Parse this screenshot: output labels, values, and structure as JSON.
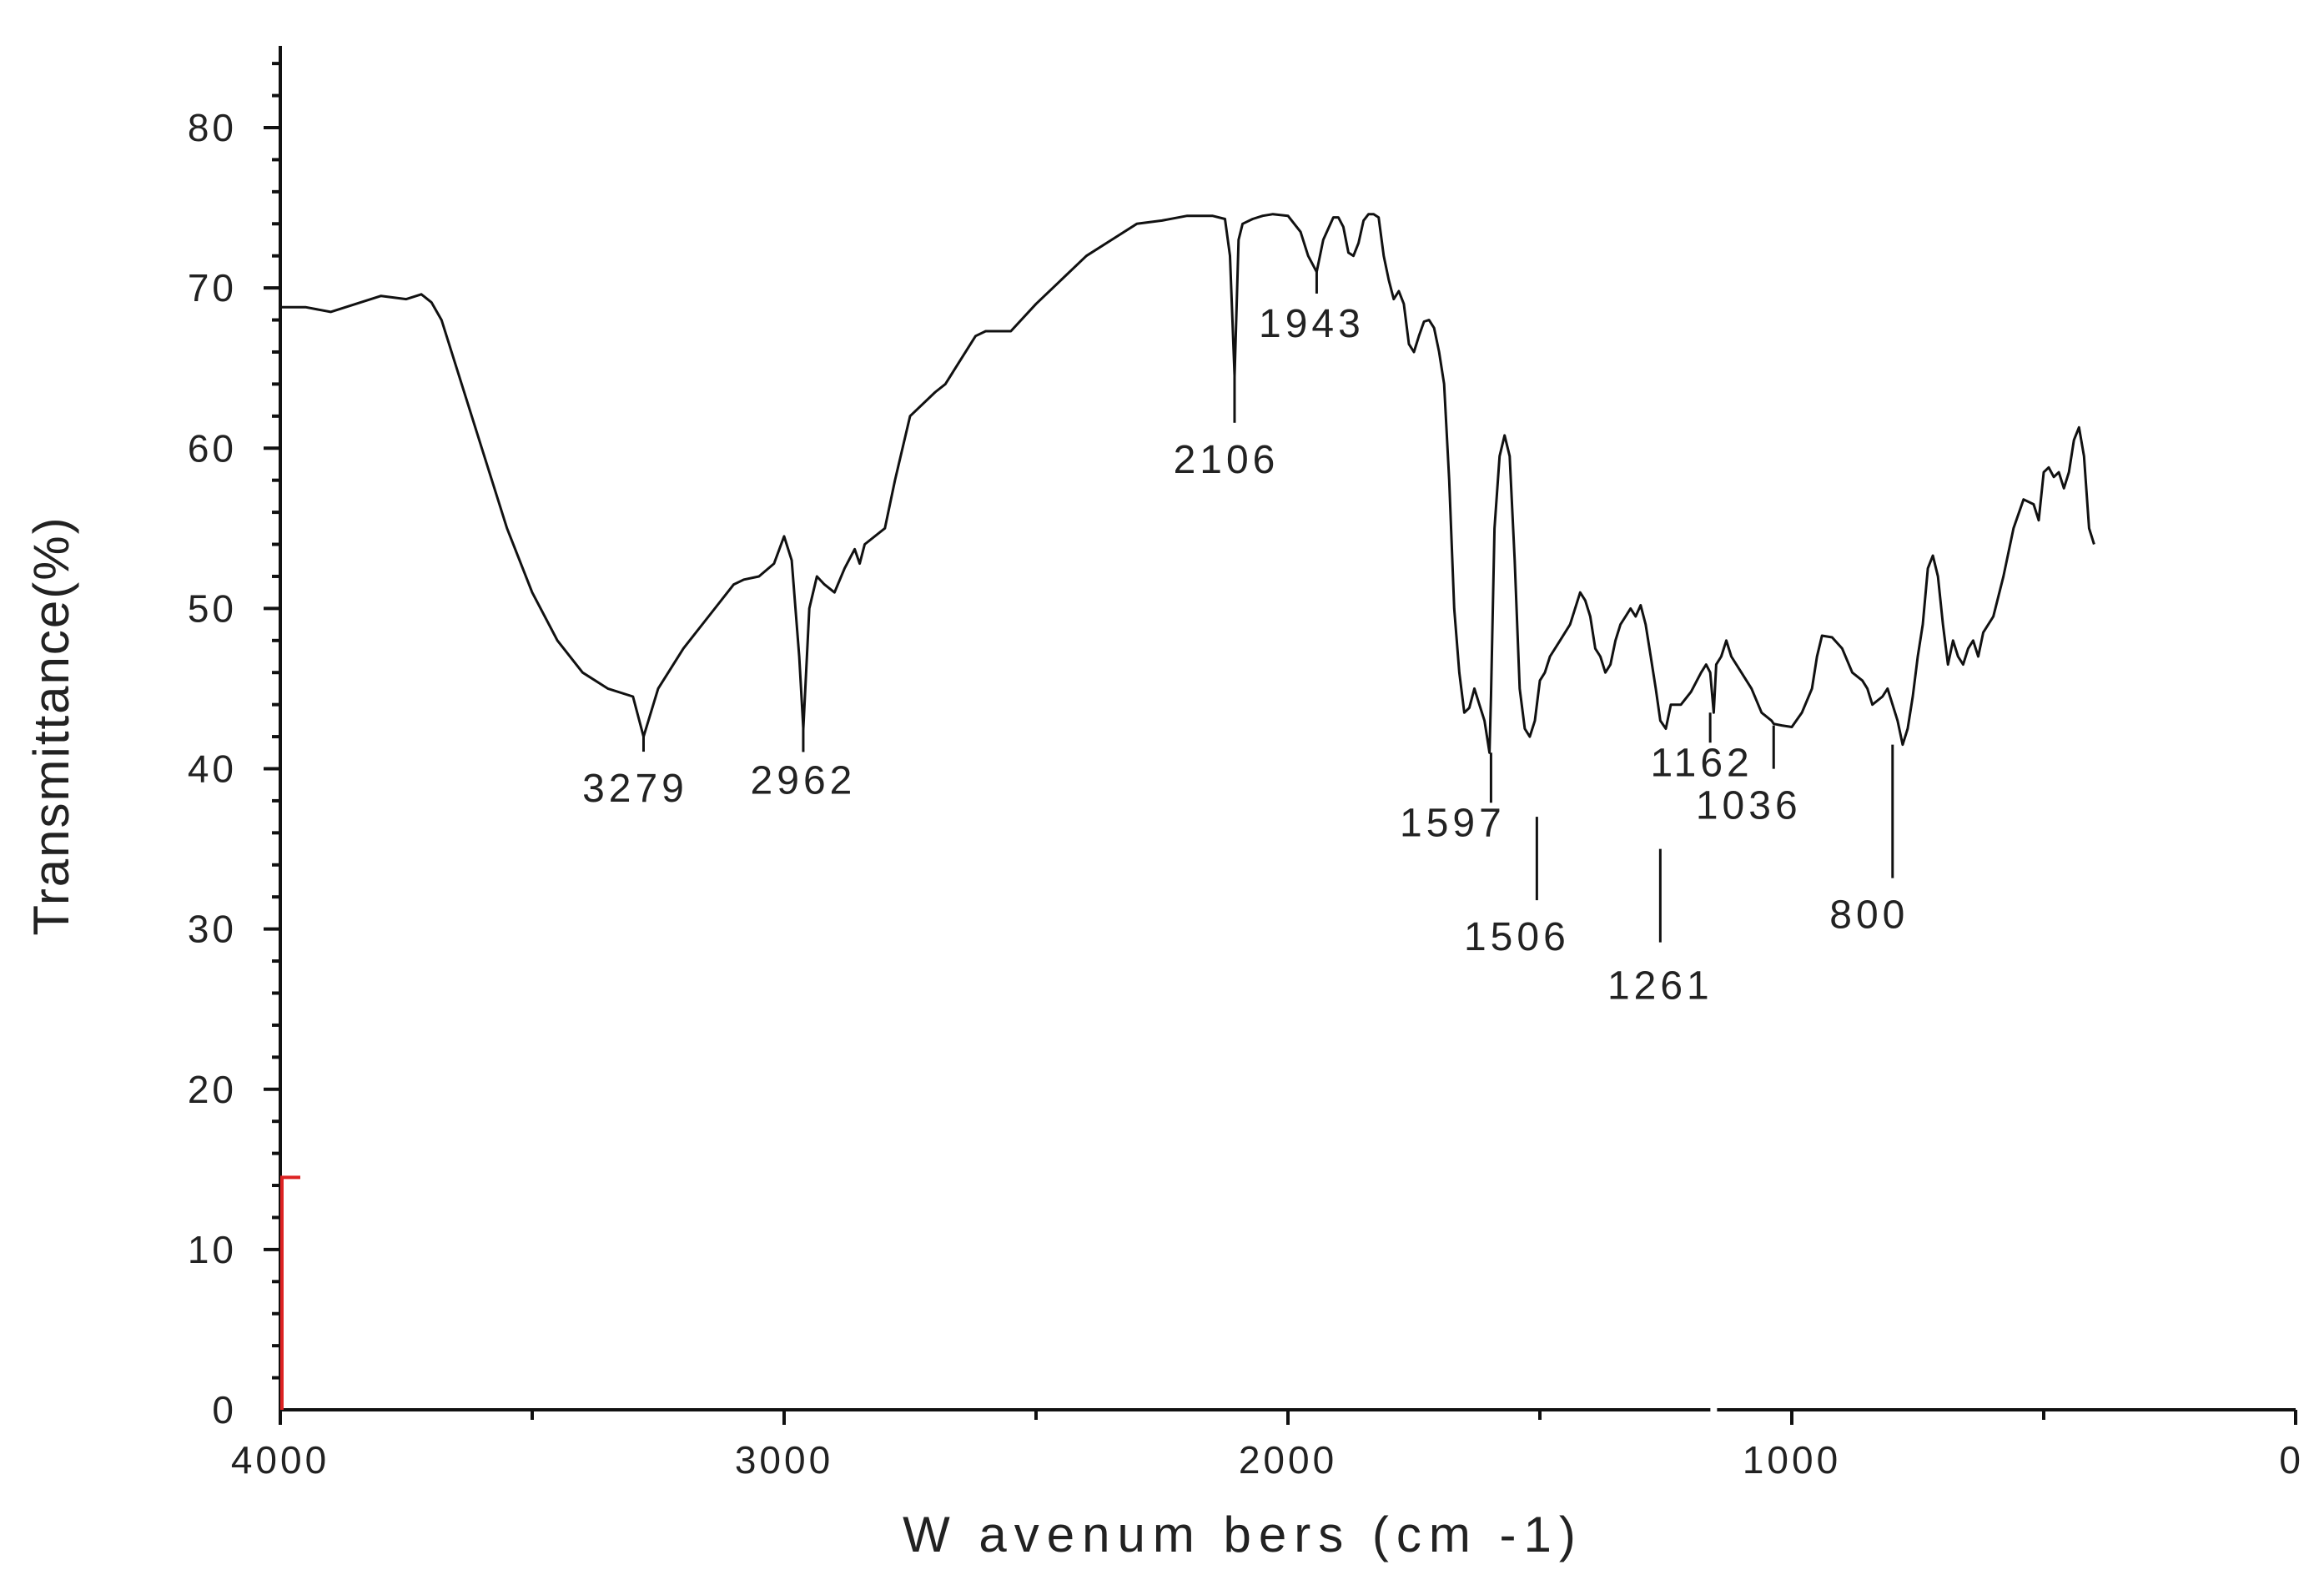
{
  "chart_data": {
    "type": "line",
    "title": "",
    "xlabel": "W avenum bers (cm -1)",
    "ylabel": "Transmittance(%)",
    "xlim": [
      4000,
      0
    ],
    "ylim": [
      0,
      85
    ],
    "x_ticks": [
      4000,
      3000,
      2000,
      1000,
      0
    ],
    "y_ticks": [
      0,
      10,
      20,
      30,
      40,
      50,
      60,
      70,
      80
    ],
    "x_tick_labels": [
      "4000",
      "3000",
      "2000",
      "1000",
      "0"
    ],
    "y_tick_labels": [
      "0",
      "10",
      "20",
      "30",
      "40",
      "50",
      "60",
      "70",
      "80"
    ],
    "grid": false,
    "legend": "none",
    "colors": {
      "line": "#111111",
      "axis": "#111111",
      "marker": "#dd2222"
    },
    "series": [
      {
        "x": [
          4000,
          3950,
          3900,
          3850,
          3800,
          3750,
          3720,
          3700,
          3680,
          3650,
          3600,
          3550,
          3500,
          3450,
          3400,
          3350,
          3300,
          3279,
          3250,
          3200,
          3150,
          3100,
          3080,
          3050,
          3020,
          3000,
          2985,
          2970,
          2962,
          2950,
          2935,
          2920,
          2900,
          2880,
          2860,
          2850,
          2840,
          2800,
          2780,
          2750,
          2700,
          2680,
          2650,
          2620,
          2600,
          2550,
          2500,
          2450,
          2400,
          2350,
          2300,
          2250,
          2200,
          2150,
          2125,
          2115,
          2106,
          2098,
          2090,
          2070,
          2050,
          2030,
          2000,
          1975,
          1960,
          1943,
          1930,
          1910,
          1900,
          1890,
          1880,
          1870,
          1860,
          1850,
          1840,
          1830,
          1820,
          1810,
          1800,
          1790,
          1780,
          1770,
          1760,
          1750,
          1740,
          1730,
          1720,
          1710,
          1700,
          1690,
          1680,
          1670,
          1660,
          1650,
          1640,
          1630,
          1620,
          1610,
          1600,
          1597,
          1590,
          1580,
          1570,
          1560,
          1550,
          1540,
          1530,
          1520,
          1510,
          1506,
          1500,
          1490,
          1480,
          1460,
          1440,
          1420,
          1410,
          1400,
          1390,
          1380,
          1370,
          1360,
          1350,
          1340,
          1330,
          1320,
          1310,
          1300,
          1290,
          1280,
          1270,
          1261,
          1250,
          1240,
          1220,
          1200,
          1180,
          1170,
          1162,
          1155,
          1150,
          1140,
          1130,
          1120,
          1100,
          1080,
          1060,
          1040,
          1036,
          1020,
          1000,
          980,
          960,
          950,
          940,
          920,
          900,
          880,
          860,
          850,
          840,
          820,
          810,
          800,
          790,
          780,
          770,
          760,
          750,
          740,
          730,
          720,
          710,
          700,
          690,
          680,
          670,
          660,
          650,
          640,
          630,
          620,
          600,
          580,
          560,
          540,
          520,
          510,
          500,
          490,
          480,
          470,
          460,
          450,
          440,
          430,
          420,
          410,
          400
        ],
        "y": [
          68.8,
          68.8,
          68.5,
          69.0,
          69.5,
          69.3,
          69.6,
          69.1,
          68.0,
          65.0,
          60.0,
          55.0,
          51.0,
          48.0,
          46.0,
          45.0,
          44.5,
          42.0,
          45.0,
          47.5,
          49.5,
          51.5,
          51.8,
          52.0,
          52.8,
          54.5,
          53.0,
          47.0,
          42.5,
          50.0,
          52.0,
          51.5,
          51.0,
          52.5,
          53.7,
          52.8,
          54.0,
          55.0,
          58.0,
          62.0,
          63.5,
          64.0,
          65.5,
          67.0,
          67.3,
          67.3,
          69.0,
          70.5,
          72.0,
          73.0,
          74.0,
          74.2,
          74.5,
          74.5,
          74.3,
          72.0,
          64.5,
          73.0,
          74.0,
          74.3,
          74.5,
          74.6,
          74.5,
          73.5,
          72.0,
          71.0,
          73.0,
          74.4,
          74.4,
          73.8,
          72.2,
          72.0,
          72.8,
          74.2,
          74.6,
          74.6,
          74.4,
          72.0,
          70.5,
          69.3,
          69.8,
          69.0,
          66.5,
          66.0,
          67.0,
          67.9,
          68.0,
          67.5,
          66.0,
          64.0,
          58.0,
          50.0,
          46.0,
          43.5,
          43.8,
          45.0,
          44.0,
          43.0,
          41.0,
          44.5,
          55.0,
          59.5,
          60.8,
          59.5,
          53.0,
          45.0,
          42.5,
          42.0,
          43.0,
          44.0,
          45.5,
          46.0,
          47.0,
          48.0,
          49.0,
          51.0,
          50.5,
          49.5,
          47.5,
          47.0,
          46.0,
          46.5,
          48.0,
          49.0,
          49.5,
          50.0,
          49.5,
          50.2,
          49.0,
          47.0,
          45.0,
          43.0,
          42.5,
          44.0,
          44.0,
          44.8,
          46.0,
          46.5,
          46.0,
          43.5,
          46.5,
          47.0,
          48.0,
          47.0,
          46.0,
          45.0,
          43.5,
          43.0,
          42.8,
          42.7,
          42.6,
          43.5,
          45.0,
          47.0,
          48.3,
          48.2,
          47.5,
          46.0,
          45.5,
          45.0,
          44.0,
          44.5,
          45.0,
          44.0,
          43.0,
          41.5,
          42.5,
          44.5,
          47.0,
          49.0,
          52.5,
          53.3,
          52.0,
          49.0,
          46.5,
          48.0,
          47.0,
          46.5,
          47.5,
          48.0,
          47.0,
          48.5,
          49.5,
          52.0,
          55.0,
          56.8,
          56.5,
          55.5,
          58.5,
          58.8,
          58.2,
          58.5,
          57.5,
          58.5,
          60.5,
          61.3,
          59.5,
          55.0,
          54.0
        ]
      }
    ],
    "annotations": [
      {
        "text": "3279",
        "x": 3279,
        "y": 42.0
      },
      {
        "text": "2962",
        "x": 2962,
        "y": 42.5
      },
      {
        "text": "2106",
        "x": 2106,
        "y": 64.5
      },
      {
        "text": "1943",
        "x": 1943,
        "y": 71.0
      },
      {
        "text": "1597",
        "x": 1597,
        "y": 41.0
      },
      {
        "text": "1506",
        "x": 1506,
        "y": 37.0
      },
      {
        "text": "1261",
        "x": 1261,
        "y": 35.0
      },
      {
        "text": "1162",
        "x": 1162,
        "y": 43.5
      },
      {
        "text": "1036",
        "x": 1036,
        "y": 42.7
      },
      {
        "text": "800",
        "x": 800,
        "y": 41.5
      }
    ],
    "marker": {
      "x": 4000,
      "y_from": 0,
      "y_to": 14.5
    }
  }
}
